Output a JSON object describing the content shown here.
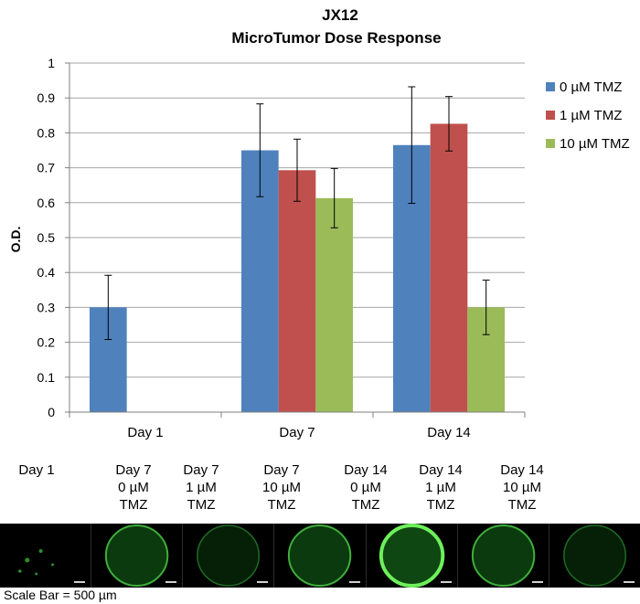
{
  "chart_data": {
    "type": "bar",
    "title": "JX12",
    "subtitle": "MicroTumor Dose Response",
    "ylabel": "O.D.",
    "xlabel": "",
    "ylim": [
      0,
      1
    ],
    "yticks": [
      "0",
      "0.1",
      "0.2",
      "0.3",
      "0.4",
      "0.5",
      "0.6",
      "0.7",
      "0.8",
      "0.9",
      "1"
    ],
    "grid": true,
    "legend_position": "right",
    "categories": [
      "Day 1",
      "Day 7",
      "Day 14"
    ],
    "series": [
      {
        "name": "0 µM TMZ",
        "color": "#4f81bd",
        "values": [
          0.3,
          0.75,
          0.765
        ],
        "errors": [
          0.092,
          0.133,
          0.167
        ]
      },
      {
        "name": "1 µM TMZ",
        "color": "#c0504d",
        "values": [
          null,
          0.693,
          0.826
        ],
        "errors": [
          null,
          0.089,
          0.078
        ]
      },
      {
        "name": "10 µM TMZ",
        "color": "#9bbb59",
        "values": [
          null,
          0.613,
          0.3
        ],
        "errors": [
          null,
          0.085,
          0.078
        ]
      }
    ]
  },
  "image_strip": {
    "panels": [
      {
        "caption": [
          "Day 1"
        ],
        "ring": "none"
      },
      {
        "caption": [
          "Day 7",
          "0 µM",
          "TMZ"
        ],
        "ring": "medium"
      },
      {
        "caption": [
          "Day 7",
          "1 µM",
          "TMZ"
        ],
        "ring": "faint"
      },
      {
        "caption": [
          "Day 7",
          "10 µM",
          "TMZ"
        ],
        "ring": "medium"
      },
      {
        "caption": [
          "Day 14",
          "0 µM",
          "TMZ"
        ],
        "ring": "bright"
      },
      {
        "caption": [
          "Day 14",
          "1 µM",
          "TMZ"
        ],
        "ring": "medium"
      },
      {
        "caption": [
          "Day 14",
          "10 µM",
          "TMZ"
        ],
        "ring": "faint"
      }
    ],
    "scale_text": "Scale Bar = 500 µm"
  }
}
